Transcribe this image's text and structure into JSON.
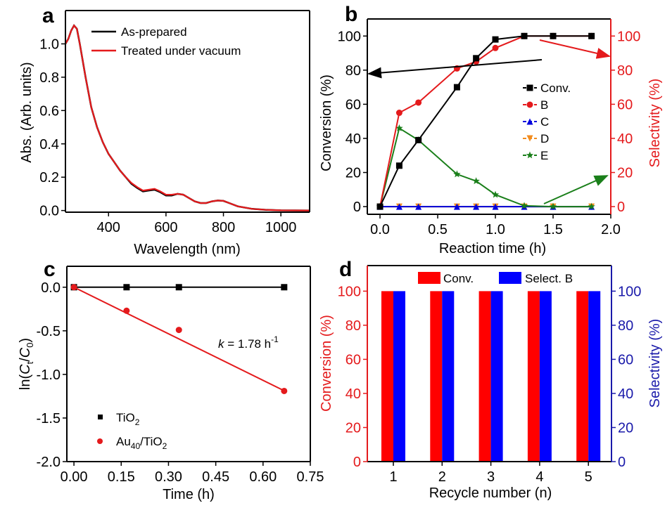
{
  "chart_data": [
    {
      "panel": "a",
      "type": "line",
      "xlabel": "Wavelength (nm)",
      "ylabel": "Abs. (Arb. units)",
      "xlim": [
        250,
        1100
      ],
      "ylim": [
        -0.01,
        1.2
      ],
      "xticks": [
        400,
        600,
        800,
        1000
      ],
      "yticks": [
        0.0,
        0.2,
        0.4,
        0.6,
        0.8,
        1.0
      ],
      "ytick_labels": [
        "0.0",
        "0.2",
        "0.4",
        "0.6",
        "0.8",
        "1.0"
      ],
      "legend_position": "top-right",
      "series": [
        {
          "name": "As-prepared",
          "color": "#000000",
          "x": [
            250,
            260,
            270,
            280,
            290,
            300,
            320,
            340,
            360,
            380,
            400,
            420,
            440,
            460,
            480,
            500,
            520,
            540,
            560,
            580,
            600,
            620,
            640,
            660,
            680,
            700,
            720,
            740,
            760,
            780,
            800,
            820,
            850,
            900,
            950,
            1000,
            1100
          ],
          "y": [
            1.0,
            1.03,
            1.08,
            1.11,
            1.09,
            1.0,
            0.8,
            0.62,
            0.5,
            0.41,
            0.34,
            0.29,
            0.24,
            0.2,
            0.16,
            0.135,
            0.115,
            0.12,
            0.125,
            0.11,
            0.09,
            0.09,
            0.1,
            0.095,
            0.075,
            0.055,
            0.045,
            0.045,
            0.055,
            0.06,
            0.058,
            0.045,
            0.025,
            0.01,
            0.004,
            0.001,
            0.0
          ]
        },
        {
          "name": "Treated under vacuum",
          "color": "#e41a1c",
          "x": [
            250,
            260,
            270,
            280,
            290,
            300,
            320,
            340,
            360,
            380,
            400,
            420,
            440,
            460,
            480,
            500,
            520,
            540,
            560,
            580,
            600,
            620,
            640,
            660,
            680,
            700,
            720,
            740,
            760,
            780,
            800,
            820,
            850,
            900,
            950,
            1000,
            1100
          ],
          "y": [
            1.0,
            1.03,
            1.08,
            1.11,
            1.09,
            1.0,
            0.8,
            0.62,
            0.5,
            0.41,
            0.34,
            0.29,
            0.24,
            0.2,
            0.165,
            0.14,
            0.12,
            0.125,
            0.13,
            0.115,
            0.095,
            0.095,
            0.1,
            0.095,
            0.075,
            0.055,
            0.045,
            0.045,
            0.055,
            0.06,
            0.058,
            0.045,
            0.025,
            0.01,
            0.004,
            0.001,
            0.0
          ]
        }
      ]
    },
    {
      "panel": "b",
      "type": "line",
      "xlabel": "Reaction time (h)",
      "ylabel": "Conversion (%)",
      "y2label": "Selectivity (%)",
      "xlim": [
        -0.11,
        2.0
      ],
      "ylim": [
        -4.5,
        110
      ],
      "xticks": [
        0.0,
        0.5,
        1.0,
        1.5,
        2.0
      ],
      "xtick_labels": [
        "0.0",
        "0.5",
        "1.0",
        "1.5",
        "2.0"
      ],
      "yticks": [
        0,
        20,
        40,
        60,
        80,
        100
      ],
      "legend_position": "center-right",
      "x": [
        0,
        0.167,
        0.333,
        0.667,
        0.833,
        1.0,
        1.25,
        1.5,
        1.833
      ],
      "series": [
        {
          "name": "Conv.",
          "color": "#000000",
          "marker": "square",
          "axis": "left",
          "values": [
            0,
            24,
            39,
            70,
            87,
            98,
            100,
            100,
            100
          ]
        },
        {
          "name": "B",
          "color": "#e41a1c",
          "marker": "circle",
          "axis": "right",
          "values": [
            0,
            55,
            61,
            81,
            85,
            93,
            100,
            100,
            100
          ]
        },
        {
          "name": "C",
          "color": "#0000dd",
          "marker": "triangle-up",
          "axis": "right",
          "values": [
            0,
            0,
            0,
            0,
            0,
            0,
            0,
            0,
            0
          ]
        },
        {
          "name": "D",
          "color": "#f28c1e",
          "marker": "triangle-down",
          "axis": "right",
          "values": [
            0,
            0,
            0,
            0,
            0,
            0,
            0,
            0,
            0
          ]
        },
        {
          "name": "E",
          "color": "#1a7f1a",
          "marker": "star",
          "axis": "right",
          "values": [
            0,
            46,
            39,
            19,
            15,
            7,
            0.5,
            0,
            0
          ]
        }
      ]
    },
    {
      "panel": "c",
      "type": "scatter",
      "xlabel": "Time (h)",
      "ylabel_parts": [
        "ln(",
        "C",
        "t",
        "/",
        "C",
        "0",
        ")"
      ],
      "xlim": [
        -0.0225,
        0.75
      ],
      "ylim": [
        -2.0,
        0.24
      ],
      "xticks": [
        0.0,
        0.15,
        0.3,
        0.45,
        0.6,
        0.75
      ],
      "xtick_labels": [
        "0.00",
        "0.15",
        "0.30",
        "0.45",
        "0.60",
        "0.75"
      ],
      "yticks": [
        0.0,
        -0.5,
        -1.0,
        -1.5,
        -2.0
      ],
      "ytick_labels": [
        "0.0",
        "-0.5",
        "-1.0",
        "-1.5",
        "-2.0"
      ],
      "legend_position": "bottom-left",
      "series": [
        {
          "name_parts": [
            "TiO",
            "2"
          ],
          "color": "#000000",
          "marker": "square",
          "x": [
            0,
            0.167,
            0.333,
            0.667
          ],
          "y": [
            0,
            0,
            0,
            0
          ],
          "fit_slope": 0
        },
        {
          "name_parts": [
            "Au",
            "40",
            "/TiO",
            "2"
          ],
          "color": "#e41a1c",
          "marker": "circle",
          "x": [
            0,
            0.167,
            0.333,
            0.667
          ],
          "y": [
            0,
            -0.27,
            -0.49,
            -1.19
          ],
          "fit_slope": -1.78
        }
      ],
      "annotation": {
        "k": "k",
        "eq": " = 1.78 h",
        "sup": "-1"
      }
    },
    {
      "panel": "d",
      "type": "bar",
      "xlabel": "Recycle number (n)",
      "ylabel": "Conversion (%)",
      "y2label": "Selectivity (%)",
      "categories": [
        "1",
        "2",
        "3",
        "4",
        "5"
      ],
      "ylim": [
        0,
        115
      ],
      "yticks": [
        0,
        20,
        40,
        60,
        80,
        100
      ],
      "legend_position": "top",
      "series": [
        {
          "name": "Conv.",
          "color": "#ff0000",
          "values": [
            100,
            100,
            100,
            100,
            100
          ]
        },
        {
          "name": "Select. B",
          "color": "#0000ff",
          "values": [
            100,
            100,
            100,
            100,
            100
          ]
        }
      ]
    }
  ],
  "panel_labels": [
    "a",
    "b",
    "c",
    "d"
  ],
  "colors": {
    "red_axis": "#e41a1c",
    "blue_axis": "#1a1aaa"
  }
}
